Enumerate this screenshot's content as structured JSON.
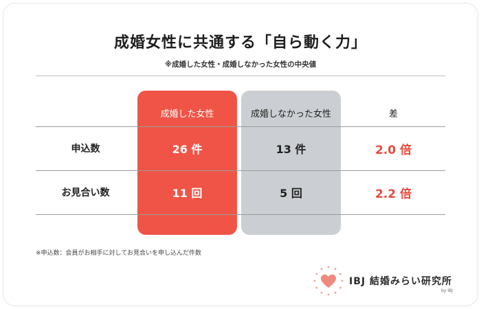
{
  "title": "成婚女性に共通する「自ら動く力」",
  "subtitle": "※成婚した女性・成婚しなかった女性の中央値",
  "table": {
    "headers": {
      "married": "成婚した女性",
      "not_married": "成婚しなかった女性",
      "difference": "差"
    },
    "rows": [
      {
        "label": "申込数",
        "married": "26 件",
        "not_married": "13 件",
        "difference": "2.0 倍"
      },
      {
        "label": "お見合い数",
        "married": "11 回",
        "not_married": "5 回",
        "difference": "2.2 倍"
      }
    ]
  },
  "footnote": "※申込数：会員がお相手に対してお見合いを申し込んだ件数",
  "logo": {
    "text": "IBJ 結婚みらい研究所",
    "by": "by IBJ",
    "icon": "heart-icon"
  },
  "colors": {
    "accent_red": "#ef5446",
    "gray_column": "#cbced2",
    "difference_text": "#e8493b"
  }
}
